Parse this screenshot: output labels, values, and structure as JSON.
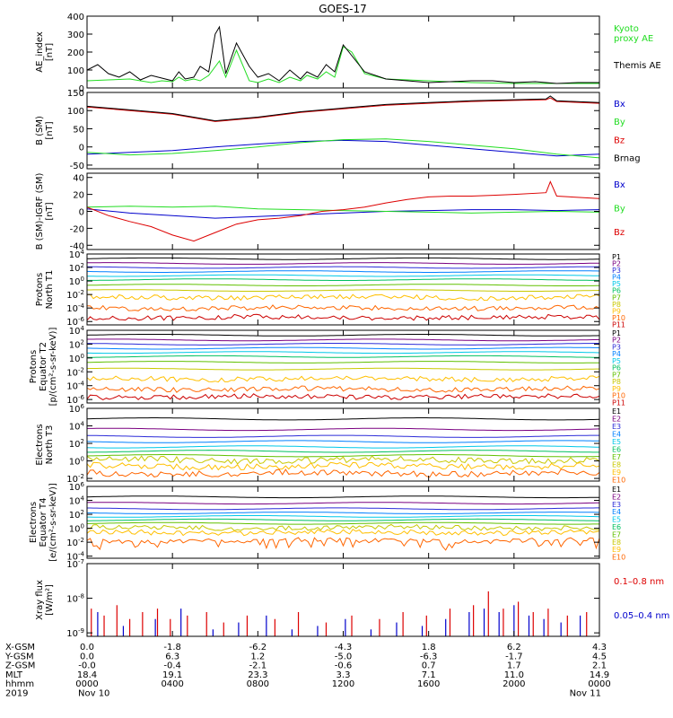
{
  "title": "GOES-17",
  "colors": {
    "black": "#000000",
    "green": "#22dd22",
    "blue": "#0000cc",
    "red": "#dd0000",
    "ch": [
      "#000000",
      "#7a0080",
      "#2b2bd8",
      "#0080ff",
      "#00c8e8",
      "#00c060",
      "#60c000",
      "#c8c800",
      "#ffbf00",
      "#ff6600",
      "#cc0000"
    ]
  },
  "chart_data": [
    {
      "id": "ae",
      "type": "line",
      "ylabel": "AE_index\n[nT]",
      "ylim": [
        0,
        400
      ],
      "yticks": [
        "400",
        "300",
        "200",
        "100",
        "0"
      ],
      "ytick_values": [
        400,
        300,
        200,
        100,
        0
      ],
      "legend": [
        {
          "text": "Kyoto",
          "color": "green"
        },
        {
          "text": "proxy AE",
          "color": "green"
        },
        {
          "text": "Themis AE",
          "color": "black"
        }
      ],
      "series": [
        {
          "name": "Kyoto proxy AE",
          "color": "green",
          "x": [
            0,
            1,
            2,
            3,
            3.5,
            4,
            4.3,
            4.6,
            5,
            5.3,
            5.7,
            6.2,
            6.5,
            7,
            7.6,
            8,
            8.5,
            9,
            9.5,
            10,
            10.3,
            10.8,
            11.2,
            11.6,
            12,
            12.4,
            13,
            14,
            16,
            18,
            20,
            22,
            24
          ],
          "y": [
            40,
            45,
            50,
            30,
            40,
            35,
            60,
            40,
            50,
            40,
            70,
            150,
            60,
            210,
            40,
            30,
            50,
            30,
            60,
            40,
            70,
            50,
            90,
            60,
            230,
            200,
            80,
            50,
            40,
            30,
            25,
            25,
            25
          ]
        },
        {
          "name": "Themis AE",
          "color": "black",
          "x": [
            0,
            0.5,
            1,
            1.5,
            2,
            2.5,
            3,
            3.5,
            4,
            4.3,
            4.6,
            5,
            5.3,
            5.7,
            6,
            6.2,
            6.5,
            7,
            7.6,
            8,
            8.5,
            9,
            9.5,
            10,
            10.3,
            10.8,
            11.2,
            11.6,
            12,
            12.4,
            13,
            14,
            15,
            16,
            17,
            18,
            19,
            20,
            21,
            22,
            23,
            24
          ],
          "y": [
            100,
            130,
            80,
            60,
            90,
            45,
            70,
            55,
            40,
            90,
            50,
            60,
            120,
            90,
            300,
            340,
            80,
            250,
            120,
            60,
            80,
            40,
            100,
            50,
            90,
            60,
            130,
            90,
            240,
            180,
            90,
            50,
            40,
            30,
            35,
            40,
            40,
            30,
            35,
            25,
            30,
            30
          ]
        }
      ]
    },
    {
      "id": "bsm",
      "type": "line",
      "ylabel": "B (SM)\n[nT]",
      "ylim": [
        -60,
        150
      ],
      "yticks": [
        "150",
        "100",
        "50",
        "0",
        "-50"
      ],
      "ytick_values": [
        150,
        100,
        50,
        0,
        -50
      ],
      "legend": [
        {
          "text": "Bx",
          "color": "blue"
        },
        {
          "text": "By",
          "color": "green"
        },
        {
          "text": "Bz",
          "color": "red"
        },
        {
          "text": "Brnag",
          "color": "black"
        }
      ],
      "series": [
        {
          "name": "Bx",
          "color": "blue",
          "x": [
            0,
            2,
            4,
            6,
            8,
            10,
            12,
            14,
            16,
            18,
            20,
            22,
            24
          ],
          "y": [
            -20,
            -15,
            -10,
            0,
            8,
            15,
            18,
            15,
            5,
            -5,
            -15,
            -25,
            -20
          ]
        },
        {
          "name": "By",
          "color": "green",
          "x": [
            0,
            2,
            4,
            6,
            8,
            10,
            12,
            14,
            16,
            18,
            20,
            22,
            24
          ],
          "y": [
            -15,
            -22,
            -18,
            -10,
            0,
            12,
            20,
            22,
            15,
            5,
            -5,
            -20,
            -30
          ]
        },
        {
          "name": "Bz",
          "color": "red",
          "x": [
            0,
            2,
            4,
            6,
            8,
            10,
            12,
            14,
            16,
            18,
            20,
            21.5,
            21.7,
            22,
            24
          ],
          "y": [
            110,
            100,
            90,
            70,
            80,
            95,
            105,
            115,
            120,
            125,
            128,
            130,
            135,
            125,
            120
          ]
        },
        {
          "name": "Brnag",
          "color": "black",
          "x": [
            0,
            2,
            4,
            6,
            8,
            10,
            12,
            14,
            16,
            18,
            20,
            21.5,
            21.7,
            22,
            24
          ],
          "y": [
            112,
            102,
            92,
            72,
            82,
            97,
            107,
            117,
            122,
            127,
            130,
            132,
            140,
            127,
            122
          ]
        }
      ]
    },
    {
      "id": "bdiff",
      "type": "line",
      "ylabel": "B (SM)-IGRF (SM)\n[nT]",
      "ylim": [
        -45,
        45
      ],
      "yticks": [
        "40",
        "20",
        "0",
        "-20",
        "-40"
      ],
      "ytick_values": [
        40,
        20,
        0,
        -20,
        -40
      ],
      "legend": [
        {
          "text": "Bx",
          "color": "blue"
        },
        {
          "text": "By",
          "color": "green"
        },
        {
          "text": "Bz",
          "color": "red"
        }
      ],
      "series": [
        {
          "name": "Bx",
          "color": "blue",
          "x": [
            0,
            2,
            4,
            6,
            8,
            10,
            12,
            14,
            16,
            18,
            20,
            22,
            24
          ],
          "y": [
            3,
            -2,
            -5,
            -8,
            -6,
            -4,
            -2,
            0,
            1,
            2,
            2,
            1,
            2
          ]
        },
        {
          "name": "By",
          "color": "green",
          "x": [
            0,
            2,
            4,
            6,
            8,
            10,
            12,
            14,
            16,
            18,
            20,
            22,
            24
          ],
          "y": [
            5,
            6,
            5,
            6,
            3,
            2,
            1,
            0,
            -1,
            -2,
            -1,
            0,
            -1
          ]
        },
        {
          "name": "Bz",
          "color": "red",
          "x": [
            0,
            1,
            2,
            3,
            4,
            5,
            6,
            7,
            8,
            9,
            10,
            11,
            12,
            13,
            14,
            15,
            16,
            17,
            18,
            19,
            20,
            21.5,
            21.7,
            22,
            24
          ],
          "y": [
            5,
            -5,
            -12,
            -18,
            -28,
            -35,
            -25,
            -15,
            -10,
            -8,
            -5,
            0,
            2,
            5,
            10,
            14,
            17,
            18,
            18,
            19,
            20,
            22,
            35,
            18,
            15
          ]
        }
      ]
    },
    {
      "id": "pn",
      "type": "line",
      "scale": "log",
      "ylabel": "Protons\nNorth T1",
      "ylim": [
        -6.5,
        4
      ],
      "yticks": [
        "10^4",
        "10^2",
        "10^0",
        "10^-2",
        "10^-4",
        "10^-6"
      ],
      "ytick_values": [
        4,
        2,
        0,
        -2,
        -4,
        -6
      ],
      "channels": [
        "P1",
        "P2",
        "P3",
        "P4",
        "P5",
        "P6",
        "P7",
        "P8",
        "P9",
        "P10",
        "P11"
      ],
      "levels": [
        3.3,
        2.6,
        2.0,
        1.4,
        0.8,
        0.2,
        -0.6,
        -1.4,
        -2.4,
        -4.0,
        -5.4
      ]
    },
    {
      "id": "pe",
      "type": "line",
      "scale": "log",
      "ylabel": "Protons\nEquator T2\n[p/(cm²-s-sr-keV)]",
      "ylim": [
        -6.5,
        4
      ],
      "yticks": [
        "10^4",
        "10^2",
        "10^0",
        "10^-2",
        "10^-4",
        "10^-6"
      ],
      "ytick_values": [
        4,
        2,
        0,
        -2,
        -4,
        -6
      ],
      "channels": [
        "P1",
        "P2",
        "P3",
        "P4",
        "P5",
        "P6",
        "P7",
        "P8",
        "P9",
        "P10",
        "P11"
      ],
      "levels": [
        3.3,
        2.6,
        2.0,
        1.4,
        0.8,
        0.2,
        -0.6,
        -1.6,
        -3.0,
        -4.5,
        -5.6
      ]
    },
    {
      "id": "en",
      "type": "line",
      "scale": "log",
      "ylabel": "Electrons\nNorth T3",
      "ylim": [
        -2.3,
        6
      ],
      "yticks": [
        "10^6",
        "10^4",
        "10^2",
        "10^0",
        "10^-2"
      ],
      "ytick_values": [
        6,
        4,
        2,
        0,
        -2
      ],
      "channels": [
        "E1",
        "E2",
        "E3",
        "E4",
        "E5",
        "E6",
        "E7",
        "E8",
        "E9",
        "E10"
      ],
      "levels": [
        4.8,
        3.6,
        2.8,
        2.2,
        1.6,
        1.1,
        0.6,
        0.1,
        -0.6,
        -1.4
      ]
    },
    {
      "id": "ee",
      "type": "line",
      "scale": "log",
      "ylabel": "Electrons\nEquator T4\n[e/(cm²-s-sr-keV)]",
      "ylim": [
        -4.3,
        6
      ],
      "yticks": [
        "10^6",
        "10^4",
        "10^2",
        "10^0",
        "10^-2",
        "10^-4"
      ],
      "ytick_values": [
        6,
        4,
        2,
        0,
        -2,
        -4
      ],
      "channels": [
        "E1",
        "E2",
        "E3",
        "E4",
        "E5",
        "E6",
        "E7",
        "E8",
        "E9",
        "E10"
      ],
      "levels": [
        4.5,
        3.6,
        2.8,
        2.2,
        1.7,
        1.2,
        0.7,
        0.1,
        -0.6,
        -1.8
      ]
    },
    {
      "id": "xray",
      "type": "line",
      "scale": "log",
      "ylabel": "Xray flux\n[W/m²]",
      "ylim": [
        -9.1,
        -7
      ],
      "yticks": [
        "10^-7",
        "10^-8",
        "10^-9"
      ],
      "ytick_values": [
        -7,
        -8,
        -9
      ],
      "legend": [
        {
          "text": "0.1–0.8 nm",
          "color": "red"
        },
        {
          "text": "0.05–0.4 nm",
          "color": "blue"
        }
      ],
      "series": [
        {
          "name": "0.1–0.8 nm",
          "color": "red",
          "x": [
            0.2,
            0.8,
            1.4,
            2.0,
            2.6,
            3.3,
            3.9,
            4.7,
            5.6,
            6.4,
            7.5,
            8.8,
            9.9,
            11.2,
            12.4,
            13.7,
            14.8,
            15.9,
            17.0,
            18.1,
            18.8,
            19.5,
            20.2,
            20.9,
            21.6,
            22.5,
            23.4
          ],
          "y": [
            -8.3,
            -8.5,
            -8.2,
            -8.6,
            -8.4,
            -8.3,
            -8.6,
            -8.5,
            -8.4,
            -8.7,
            -8.5,
            -8.6,
            -8.4,
            -8.7,
            -8.5,
            -8.6,
            -8.4,
            -8.5,
            -8.3,
            -8.2,
            -7.8,
            -8.3,
            -8.1,
            -8.4,
            -8.3,
            -8.5,
            -8.4
          ]
        },
        {
          "name": "0.05–0.4 nm",
          "color": "blue",
          "x": [
            0.5,
            1.7,
            3.2,
            4.4,
            5.9,
            7.1,
            8.4,
            9.6,
            10.8,
            12.1,
            13.3,
            14.5,
            15.7,
            16.8,
            17.9,
            18.6,
            19.3,
            20.0,
            20.7,
            21.4,
            22.2,
            23.1
          ],
          "y": [
            -8.4,
            -8.8,
            -8.6,
            -8.3,
            -8.9,
            -8.7,
            -8.5,
            -8.9,
            -8.8,
            -8.6,
            -8.9,
            -8.7,
            -8.8,
            -8.6,
            -8.4,
            -8.3,
            -8.4,
            -8.2,
            -8.5,
            -8.6,
            -8.7,
            -8.5
          ]
        }
      ]
    }
  ],
  "x_axis": {
    "xlim": [
      0,
      24
    ],
    "tick_hours": [
      0,
      4,
      8,
      12,
      16,
      20,
      24
    ],
    "row_labels": [
      "X-GSM",
      "Y-GSM",
      "Z-GSM",
      "MLT",
      "hhmm",
      "2019"
    ],
    "columns": [
      [
        "0.0",
        "0.0",
        "-0.0",
        "18.4",
        "0000",
        "Nov 10"
      ],
      [
        "-1.8",
        "6.3",
        "-0.4",
        "19.1",
        "0400",
        ""
      ],
      [
        "-6.2",
        "1.2",
        "-2.1",
        "23.3",
        "0800",
        ""
      ],
      [
        "-4.3",
        "-5.0",
        "-0.6",
        "3.3",
        "1200",
        ""
      ],
      [
        "1.8",
        "-6.3",
        "0.7",
        "7.1",
        "1600",
        ""
      ],
      [
        "6.2",
        "-1.7",
        "1.7",
        "11.0",
        "2000",
        ""
      ],
      [
        "4.3",
        "4.5",
        "2.1",
        "14.9",
        "0000",
        "Nov 11"
      ]
    ]
  }
}
